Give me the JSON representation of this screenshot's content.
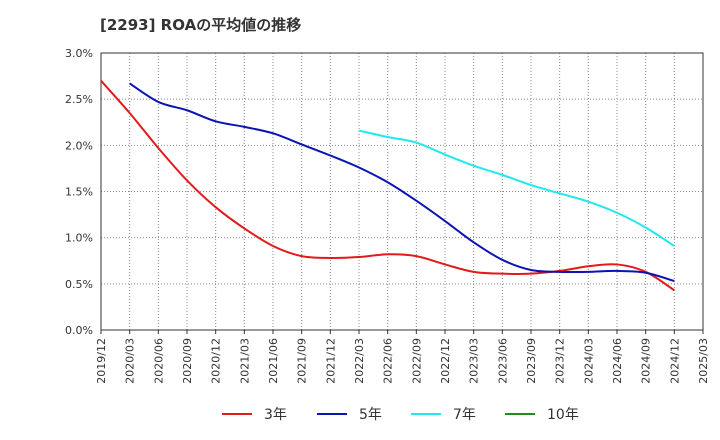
{
  "chart_data": {
    "type": "line",
    "title": "[2293]  ROAの平均値の推移",
    "xlabel": "",
    "ylabel": "",
    "ylim": [
      0,
      3.0
    ],
    "y_ticks": [
      "0.0%",
      "0.5%",
      "1.0%",
      "1.5%",
      "2.0%",
      "2.5%",
      "3.0%"
    ],
    "x_ticks": [
      "2019/12",
      "2020/03",
      "2020/06",
      "2020/09",
      "2020/12",
      "2021/03",
      "2021/06",
      "2021/09",
      "2021/12",
      "2022/03",
      "2022/06",
      "2022/09",
      "2022/12",
      "2023/03",
      "2023/06",
      "2023/09",
      "2023/12",
      "2024/03",
      "2024/06",
      "2024/09",
      "2024/12",
      "2025/03"
    ],
    "grid": true,
    "legend_position": "bottom",
    "series": [
      {
        "name": "3年",
        "color": "#e31a1c",
        "values": [
          2.7,
          2.35,
          1.97,
          1.62,
          1.33,
          1.1,
          0.91,
          0.8,
          0.78,
          0.79,
          0.82,
          0.8,
          0.71,
          0.63,
          0.61,
          0.61,
          0.64,
          0.69,
          0.71,
          0.63,
          0.43
        ]
      },
      {
        "name": "5年",
        "color": "#0a14b4",
        "values": [
          null,
          2.67,
          2.47,
          2.38,
          2.26,
          2.2,
          2.13,
          2.01,
          1.89,
          1.76,
          1.6,
          1.4,
          1.18,
          0.95,
          0.76,
          0.65,
          0.63,
          0.63,
          0.64,
          0.62,
          0.53
        ]
      },
      {
        "name": "7年",
        "color": "#22e7ee",
        "values": [
          null,
          null,
          null,
          null,
          null,
          null,
          null,
          null,
          null,
          2.16,
          2.09,
          2.03,
          1.9,
          1.78,
          1.68,
          1.57,
          1.48,
          1.39,
          1.27,
          1.11,
          0.91
        ]
      },
      {
        "name": "10年",
        "color": "#228b22",
        "values": []
      }
    ]
  }
}
